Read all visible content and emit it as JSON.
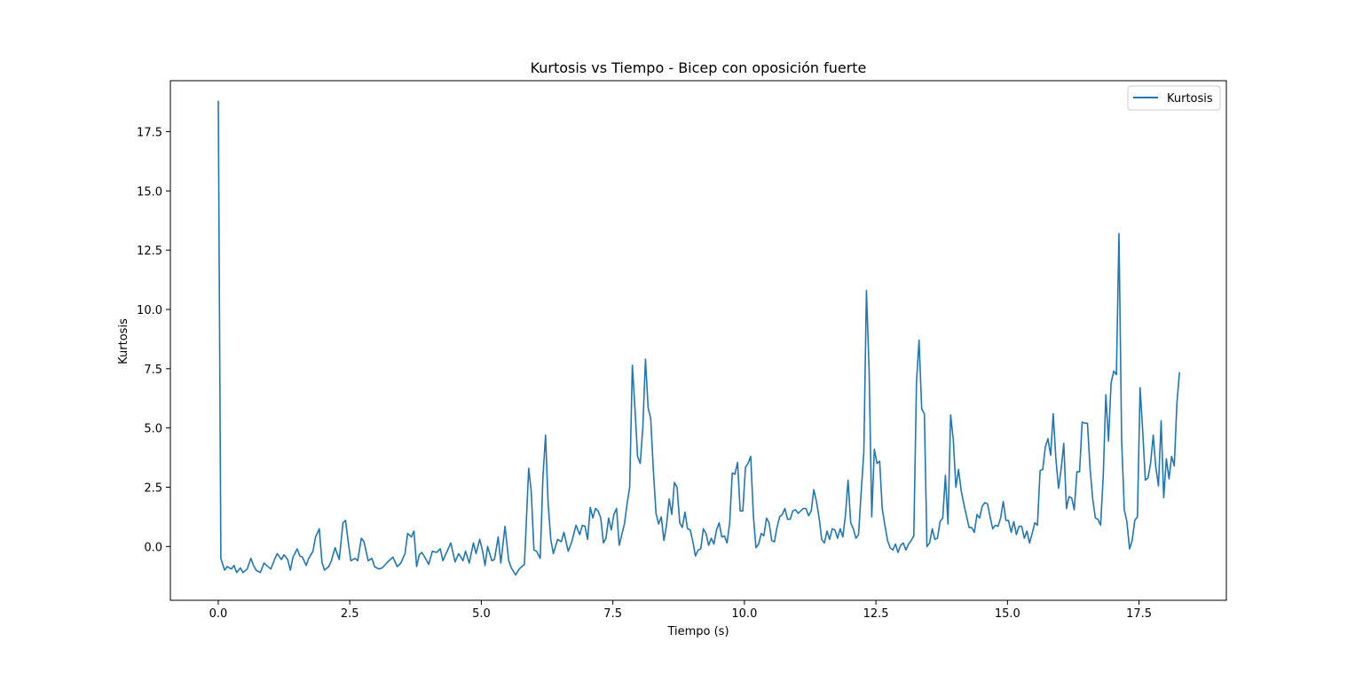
{
  "chart_data": {
    "type": "line",
    "title": "Kurtosis vs Tiempo - Bicep con oposición fuerte",
    "xlabel": "Tiempo (s)",
    "ylabel": "Kurtosis",
    "xlim": [
      -0.91,
      19.16
    ],
    "ylim": [
      -2.27,
      19.65
    ],
    "x_ticks": [
      0.0,
      2.5,
      5.0,
      7.5,
      10.0,
      12.5,
      15.0,
      17.5
    ],
    "x_tick_labels": [
      "0.0",
      "2.5",
      "5.0",
      "7.5",
      "10.0",
      "12.5",
      "15.0",
      "17.5"
    ],
    "y_ticks": [
      0.0,
      2.5,
      5.0,
      7.5,
      10.0,
      12.5,
      15.0,
      17.5
    ],
    "y_tick_labels": [
      "0.0",
      "2.5",
      "5.0",
      "7.5",
      "10.0",
      "12.5",
      "15.0",
      "17.5"
    ],
    "grid": false,
    "legend": {
      "position": "top-right",
      "entries": [
        "Kurtosis"
      ]
    },
    "color": "#1f77b4",
    "series": [
      {
        "name": "Kurtosis",
        "x": [
          0.0,
          0.05,
          0.12,
          0.17,
          0.25,
          0.3,
          0.35,
          0.42,
          0.47,
          0.55,
          0.62,
          0.67,
          0.72,
          0.8,
          0.87,
          0.92,
          1.0,
          1.07,
          1.12,
          1.2,
          1.25,
          1.32,
          1.37,
          1.42,
          1.5,
          1.55,
          1.6,
          1.67,
          1.72,
          1.8,
          1.85,
          1.92,
          1.97,
          2.02,
          2.1,
          2.15,
          2.22,
          2.3,
          2.37,
          2.42,
          2.47,
          2.52,
          2.6,
          2.65,
          2.72,
          2.77,
          2.85,
          2.92,
          2.97,
          3.05,
          3.12,
          3.2,
          3.27,
          3.32,
          3.4,
          3.47,
          3.55,
          3.6,
          3.67,
          3.72,
          3.77,
          3.82,
          3.87,
          3.95,
          4.0,
          4.07,
          4.15,
          4.22,
          4.27,
          4.35,
          4.42,
          4.5,
          4.57,
          4.65,
          4.7,
          4.77,
          4.85,
          4.9,
          4.97,
          5.02,
          5.07,
          5.12,
          5.2,
          5.25,
          5.32,
          5.37,
          5.45,
          5.52,
          5.57,
          5.65,
          5.72,
          5.82,
          5.9,
          5.95,
          6.0,
          6.05,
          6.12,
          6.17,
          6.22,
          6.27,
          6.32,
          6.37,
          6.45,
          6.52,
          6.57,
          6.65,
          6.72,
          6.8,
          6.87,
          6.92,
          6.97,
          7.02,
          7.07,
          7.12,
          7.17,
          7.22,
          7.27,
          7.32,
          7.37,
          7.42,
          7.47,
          7.52,
          7.57,
          7.62,
          7.67,
          7.72,
          7.77,
          7.82,
          7.87,
          7.92,
          7.97,
          8.02,
          8.07,
          8.12,
          8.17,
          8.22,
          8.27,
          8.32,
          8.37,
          8.42,
          8.47,
          8.52,
          8.57,
          8.62,
          8.67,
          8.72,
          8.77,
          8.82,
          8.87,
          8.92,
          8.97,
          9.02,
          9.07,
          9.12,
          9.17,
          9.22,
          9.27,
          9.32,
          9.37,
          9.42,
          9.47,
          9.52,
          9.57,
          9.62,
          9.67,
          9.72,
          9.77,
          9.82,
          9.87,
          9.92,
          9.97,
          10.02,
          10.07,
          10.12,
          10.17,
          10.22,
          10.27,
          10.32,
          10.37,
          10.42,
          10.47,
          10.52,
          10.57,
          10.62,
          10.67,
          10.72,
          10.77,
          10.82,
          10.87,
          10.92,
          10.97,
          11.02,
          11.07,
          11.12,
          11.17,
          11.22,
          11.27,
          11.32,
          11.37,
          11.42,
          11.47,
          11.52,
          11.57,
          11.62,
          11.67,
          11.72,
          11.77,
          11.82,
          11.87,
          11.92,
          11.97,
          12.02,
          12.07,
          12.12,
          12.17,
          12.22,
          12.27,
          12.32,
          12.37,
          12.42,
          12.47,
          12.52,
          12.57,
          12.62,
          12.67,
          12.72,
          12.77,
          12.82,
          12.87,
          12.92,
          12.97,
          13.02,
          13.07,
          13.12,
          13.17,
          13.22,
          13.27,
          13.32,
          13.37,
          13.42,
          13.47,
          13.52,
          13.57,
          13.62,
          13.67,
          13.72,
          13.77,
          13.82,
          13.87,
          13.92,
          13.97,
          14.02,
          14.07,
          14.12,
          14.17,
          14.22,
          14.27,
          14.32,
          14.37,
          14.42,
          14.47,
          14.52,
          14.57,
          14.62,
          14.67,
          14.72,
          14.77,
          14.82,
          14.87,
          14.92,
          14.97,
          15.02,
          15.07,
          15.12,
          15.17,
          15.22,
          15.27,
          15.32,
          15.37,
          15.42,
          15.47,
          15.52,
          15.57,
          15.62,
          15.67,
          15.72,
          15.77,
          15.82,
          15.87,
          15.92,
          15.97,
          16.02,
          16.07,
          16.12,
          16.17,
          16.22,
          16.27,
          16.32,
          16.37,
          16.42,
          16.47,
          16.52,
          16.57,
          16.62,
          16.67,
          16.72,
          16.77,
          16.82,
          16.87,
          16.92,
          16.97,
          17.02,
          17.07,
          17.12,
          17.17,
          17.22,
          17.27,
          17.32,
          17.37,
          17.42,
          17.47,
          17.52,
          17.57,
          17.62,
          17.67,
          17.72,
          17.77,
          17.82,
          17.87,
          17.92,
          17.97,
          18.02,
          18.07,
          18.12,
          18.17,
          18.22,
          18.27
        ],
        "y": [
          18.8,
          -0.5,
          -1.0,
          -0.85,
          -0.95,
          -0.8,
          -1.1,
          -0.9,
          -1.1,
          -0.95,
          -0.5,
          -0.8,
          -1.0,
          -1.1,
          -0.7,
          -0.8,
          -0.95,
          -0.55,
          -0.3,
          -0.55,
          -0.35,
          -0.55,
          -1.0,
          -0.45,
          -0.1,
          -0.4,
          -0.45,
          -0.8,
          -0.5,
          -0.2,
          0.4,
          0.75,
          -0.65,
          -1.0,
          -0.85,
          -0.6,
          -0.05,
          -0.55,
          1.0,
          1.1,
          0.2,
          -0.6,
          -0.5,
          -0.6,
          0.35,
          0.2,
          -0.6,
          -0.5,
          -0.85,
          -0.95,
          -0.9,
          -0.7,
          -0.55,
          -0.45,
          -0.85,
          -0.7,
          -0.3,
          0.55,
          0.4,
          0.65,
          -0.85,
          -0.35,
          -0.25,
          -0.55,
          -0.75,
          -0.2,
          -0.25,
          -0.1,
          -0.6,
          -0.2,
          0.15,
          -0.65,
          -0.3,
          -0.6,
          -0.2,
          -0.7,
          0.15,
          -0.3,
          0.3,
          -0.15,
          -0.8,
          0.0,
          -0.6,
          -0.55,
          0.4,
          -0.7,
          0.85,
          -0.6,
          -0.9,
          -1.2,
          -0.95,
          -0.75,
          3.3,
          2.3,
          -0.15,
          -0.2,
          -0.5,
          2.9,
          4.7,
          1.8,
          0.3,
          -0.3,
          0.3,
          0.2,
          0.6,
          -0.2,
          0.2,
          0.9,
          0.5,
          0.9,
          0.85,
          0.3,
          1.65,
          1.2,
          1.6,
          1.5,
          1.2,
          0.15,
          0.35,
          1.2,
          0.7,
          1.35,
          1.6,
          0.05,
          0.5,
          0.95,
          1.8,
          2.5,
          7.65,
          5.8,
          3.8,
          3.5,
          5.0,
          7.9,
          5.85,
          5.4,
          3.2,
          1.4,
          0.95,
          1.25,
          0.25,
          0.9,
          2.0,
          1.35,
          2.7,
          2.5,
          1.0,
          0.8,
          1.45,
          0.75,
          0.7,
          0.2,
          -0.4,
          -0.15,
          -0.1,
          0.75,
          0.55,
          0.05,
          0.35,
          0.1,
          0.7,
          1.0,
          0.4,
          0.45,
          0.15,
          1.0,
          3.1,
          3.05,
          3.55,
          1.5,
          1.5,
          3.35,
          3.5,
          3.8,
          1.3,
          -0.05,
          0.1,
          0.55,
          0.45,
          1.2,
          1.0,
          0.25,
          0.2,
          0.8,
          1.25,
          1.35,
          1.6,
          1.15,
          1.15,
          1.5,
          1.55,
          1.4,
          1.5,
          1.6,
          1.6,
          1.3,
          1.5,
          2.4,
          1.9,
          1.2,
          0.3,
          0.15,
          0.65,
          0.3,
          0.75,
          0.7,
          0.35,
          0.75,
          0.4,
          1.3,
          2.8,
          1.0,
          0.75,
          0.35,
          0.5,
          2.3,
          4.0,
          10.8,
          7.5,
          1.25,
          4.1,
          3.5,
          3.6,
          1.6,
          0.9,
          0.25,
          -0.05,
          -0.15,
          0.1,
          -0.25,
          0.05,
          0.15,
          -0.15,
          0.1,
          0.25,
          0.45,
          6.9,
          8.7,
          5.8,
          5.6,
          0.0,
          0.15,
          0.75,
          0.3,
          0.35,
          1.05,
          1.2,
          3.0,
          0.95,
          5.55,
          4.5,
          2.5,
          3.25,
          2.35,
          1.8,
          1.3,
          0.8,
          0.8,
          0.6,
          1.35,
          1.2,
          1.7,
          1.85,
          1.8,
          1.25,
          0.75,
          0.9,
          0.85,
          1.2,
          1.9,
          1.1,
          1.1,
          0.6,
          1.05,
          0.5,
          0.85,
          0.85,
          0.35,
          0.65,
          0.15,
          0.55,
          1.0,
          0.9,
          3.2,
          3.25,
          4.2,
          4.55,
          3.85,
          5.6,
          3.7,
          2.45,
          3.25,
          4.35,
          1.6,
          2.1,
          2.05,
          1.55,
          3.15,
          3.15,
          5.25,
          5.2,
          5.2,
          3.3,
          2.0,
          1.2,
          1.15,
          0.9,
          3.0,
          6.4,
          4.45,
          6.9,
          7.4,
          7.25,
          13.2,
          4.5,
          1.55,
          1.05,
          -0.1,
          0.25,
          1.1,
          1.25,
          6.7,
          4.9,
          2.8,
          2.9,
          3.5,
          4.7,
          3.35,
          2.55,
          5.3,
          2.05,
          3.7,
          2.85,
          3.8,
          3.4,
          6.05,
          7.35
        ]
      }
    ]
  }
}
